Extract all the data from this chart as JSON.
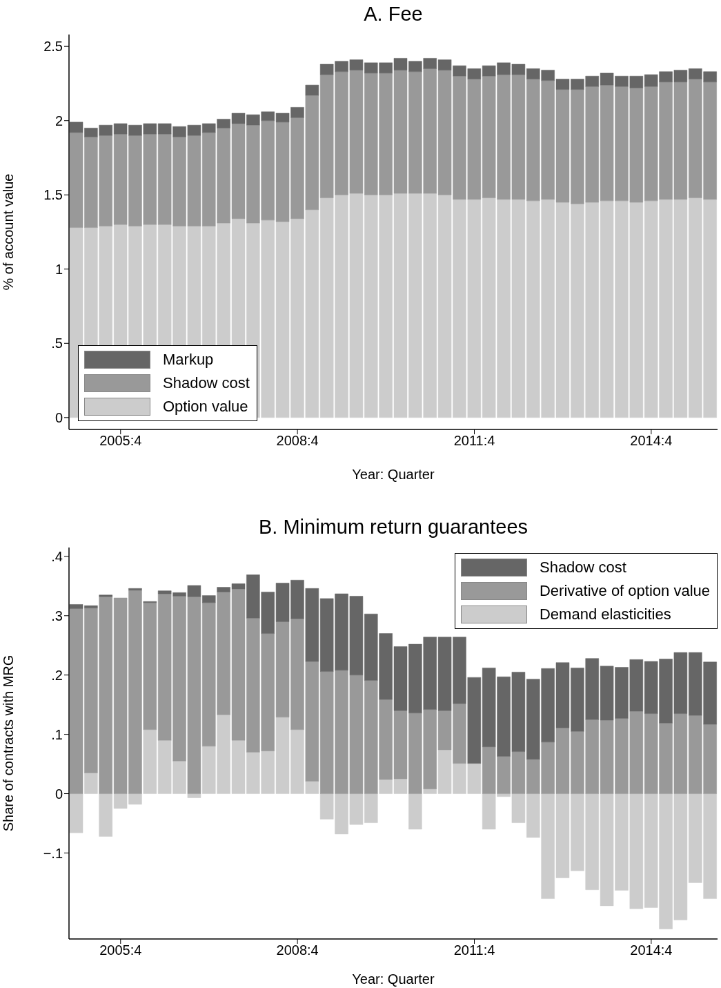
{
  "chart_data": [
    {
      "type": "bar",
      "title": "A. Fee",
      "xlabel": "Year: Quarter",
      "ylabel": "% of account value",
      "stacked": true,
      "legend": "bottom left",
      "categories": [
        null,
        null,
        null,
        "2005:4",
        null,
        null,
        null,
        null,
        null,
        null,
        null,
        null,
        null,
        null,
        null,
        "2008:4",
        null,
        null,
        null,
        null,
        null,
        null,
        null,
        null,
        null,
        null,
        null,
        "2011:4",
        null,
        null,
        null,
        null,
        null,
        null,
        null,
        null,
        null,
        null,
        null,
        "2014:4",
        null,
        null,
        null,
        null
      ],
      "series": [
        {
          "name": "Option value",
          "color": "#cccccc",
          "values": [
            1.28,
            1.28,
            1.29,
            1.3,
            1.29,
            1.3,
            1.3,
            1.29,
            1.29,
            1.29,
            1.31,
            1.34,
            1.31,
            1.33,
            1.32,
            1.34,
            1.4,
            1.48,
            1.5,
            1.51,
            1.5,
            1.5,
            1.51,
            1.51,
            1.51,
            1.5,
            1.47,
            1.47,
            1.48,
            1.47,
            1.47,
            1.46,
            1.47,
            1.45,
            1.44,
            1.45,
            1.46,
            1.46,
            1.45,
            1.46,
            1.47,
            1.47,
            1.48,
            1.47
          ]
        },
        {
          "name": "Shadow cost",
          "color": "#999999",
          "values": [
            0.64,
            0.61,
            0.61,
            0.61,
            0.61,
            0.61,
            0.61,
            0.6,
            0.61,
            0.63,
            0.64,
            0.64,
            0.66,
            0.67,
            0.67,
            0.68,
            0.77,
            0.83,
            0.83,
            0.83,
            0.82,
            0.82,
            0.83,
            0.82,
            0.84,
            0.84,
            0.83,
            0.81,
            0.82,
            0.84,
            0.84,
            0.82,
            0.8,
            0.76,
            0.77,
            0.78,
            0.78,
            0.77,
            0.77,
            0.77,
            0.79,
            0.79,
            0.8,
            0.79
          ]
        },
        {
          "name": "Markup",
          "color": "#666666",
          "values": [
            0.07,
            0.06,
            0.07,
            0.07,
            0.07,
            0.07,
            0.07,
            0.07,
            0.07,
            0.06,
            0.06,
            0.07,
            0.07,
            0.06,
            0.06,
            0.07,
            0.07,
            0.07,
            0.07,
            0.07,
            0.07,
            0.07,
            0.08,
            0.07,
            0.07,
            0.07,
            0.07,
            0.07,
            0.07,
            0.08,
            0.07,
            0.07,
            0.07,
            0.07,
            0.07,
            0.07,
            0.08,
            0.07,
            0.08,
            0.08,
            0.07,
            0.08,
            0.07,
            0.07
          ]
        }
      ],
      "ylim": [
        -0.08,
        2.58
      ],
      "yticks": [
        0,
        {
          "value": 0.5,
          "label": ".5"
        },
        1,
        1.5,
        2,
        2.5
      ]
    },
    {
      "type": "bar",
      "title": "B. Minimum return guarantees",
      "xlabel": "Year: Quarter",
      "ylabel": "Share of contracts with MRG",
      "stacked": true,
      "legend": "top right",
      "categories": [
        null,
        null,
        null,
        "2005:4",
        null,
        null,
        null,
        null,
        null,
        null,
        null,
        null,
        null,
        null,
        null,
        "2008:4",
        null,
        null,
        null,
        null,
        null,
        null,
        null,
        null,
        null,
        null,
        null,
        "2011:4",
        null,
        null,
        null,
        null,
        null,
        null,
        null,
        null,
        null,
        null,
        null,
        "2014:4",
        null,
        null,
        null,
        null
      ],
      "series": [
        {
          "name": "Demand elasticities",
          "color": "#cccccc",
          "values": [
            -0.066,
            0.035,
            -0.072,
            -0.025,
            -0.018,
            0.108,
            0.09,
            0.055,
            -0.007,
            0.08,
            0.133,
            0.09,
            0.07,
            0.072,
            0.129,
            0.108,
            0.021,
            -0.043,
            -0.068,
            -0.052,
            -0.049,
            0.024,
            0.025,
            -0.06,
            0.008,
            0.074,
            0.051,
            0.051,
            -0.06,
            -0.005,
            -0.049,
            -0.074,
            -0.177,
            -0.142,
            -0.13,
            -0.162,
            -0.189,
            -0.163,
            -0.194,
            -0.192,
            -0.228,
            -0.213,
            -0.15,
            -0.177
          ]
        },
        {
          "name": "Derivative of option value",
          "color": "#999999",
          "values": [
            0.312,
            0.278,
            0.332,
            0.33,
            0.343,
            0.214,
            0.247,
            0.278,
            0.332,
            0.242,
            0.207,
            0.255,
            0.226,
            0.198,
            0.161,
            0.187,
            0.202,
            0.206,
            0.208,
            0.2,
            0.191,
            0.135,
            0.115,
            0.136,
            0.134,
            0.066,
            0.101,
            0,
            0.079,
            0.063,
            0.071,
            0.058,
            0.087,
            0.111,
            0.105,
            0.125,
            0.124,
            0.127,
            0.139,
            0.135,
            0.119,
            0.135,
            0.132,
            0.117
          ]
        },
        {
          "name": "Shadow cost",
          "color": "#666666",
          "values": [
            0.007,
            0.004,
            0.003,
            0,
            0.003,
            0.002,
            0.005,
            0.006,
            0.019,
            0.012,
            0.008,
            0.009,
            0.073,
            0.07,
            0.065,
            0.065,
            0.123,
            0.123,
            0.129,
            0.133,
            0.112,
            0.111,
            0.108,
            0.116,
            0.122,
            0.124,
            0.112,
            0.145,
            0.133,
            0.134,
            0.134,
            0.135,
            0.124,
            0.11,
            0.107,
            0.103,
            0.091,
            0.086,
            0.087,
            0.088,
            0.108,
            0.103,
            0.106,
            0.105
          ]
        }
      ],
      "ylim": [
        -0.245,
        0.415
      ],
      "yticks": [
        {
          "value": -0.1,
          "label": "−.1"
        },
        0,
        {
          "value": 0.1,
          "label": ".1"
        },
        {
          "value": 0.2,
          "label": ".2"
        },
        {
          "value": 0.3,
          "label": ".3"
        },
        {
          "value": 0.4,
          "label": ".4"
        }
      ]
    }
  ]
}
